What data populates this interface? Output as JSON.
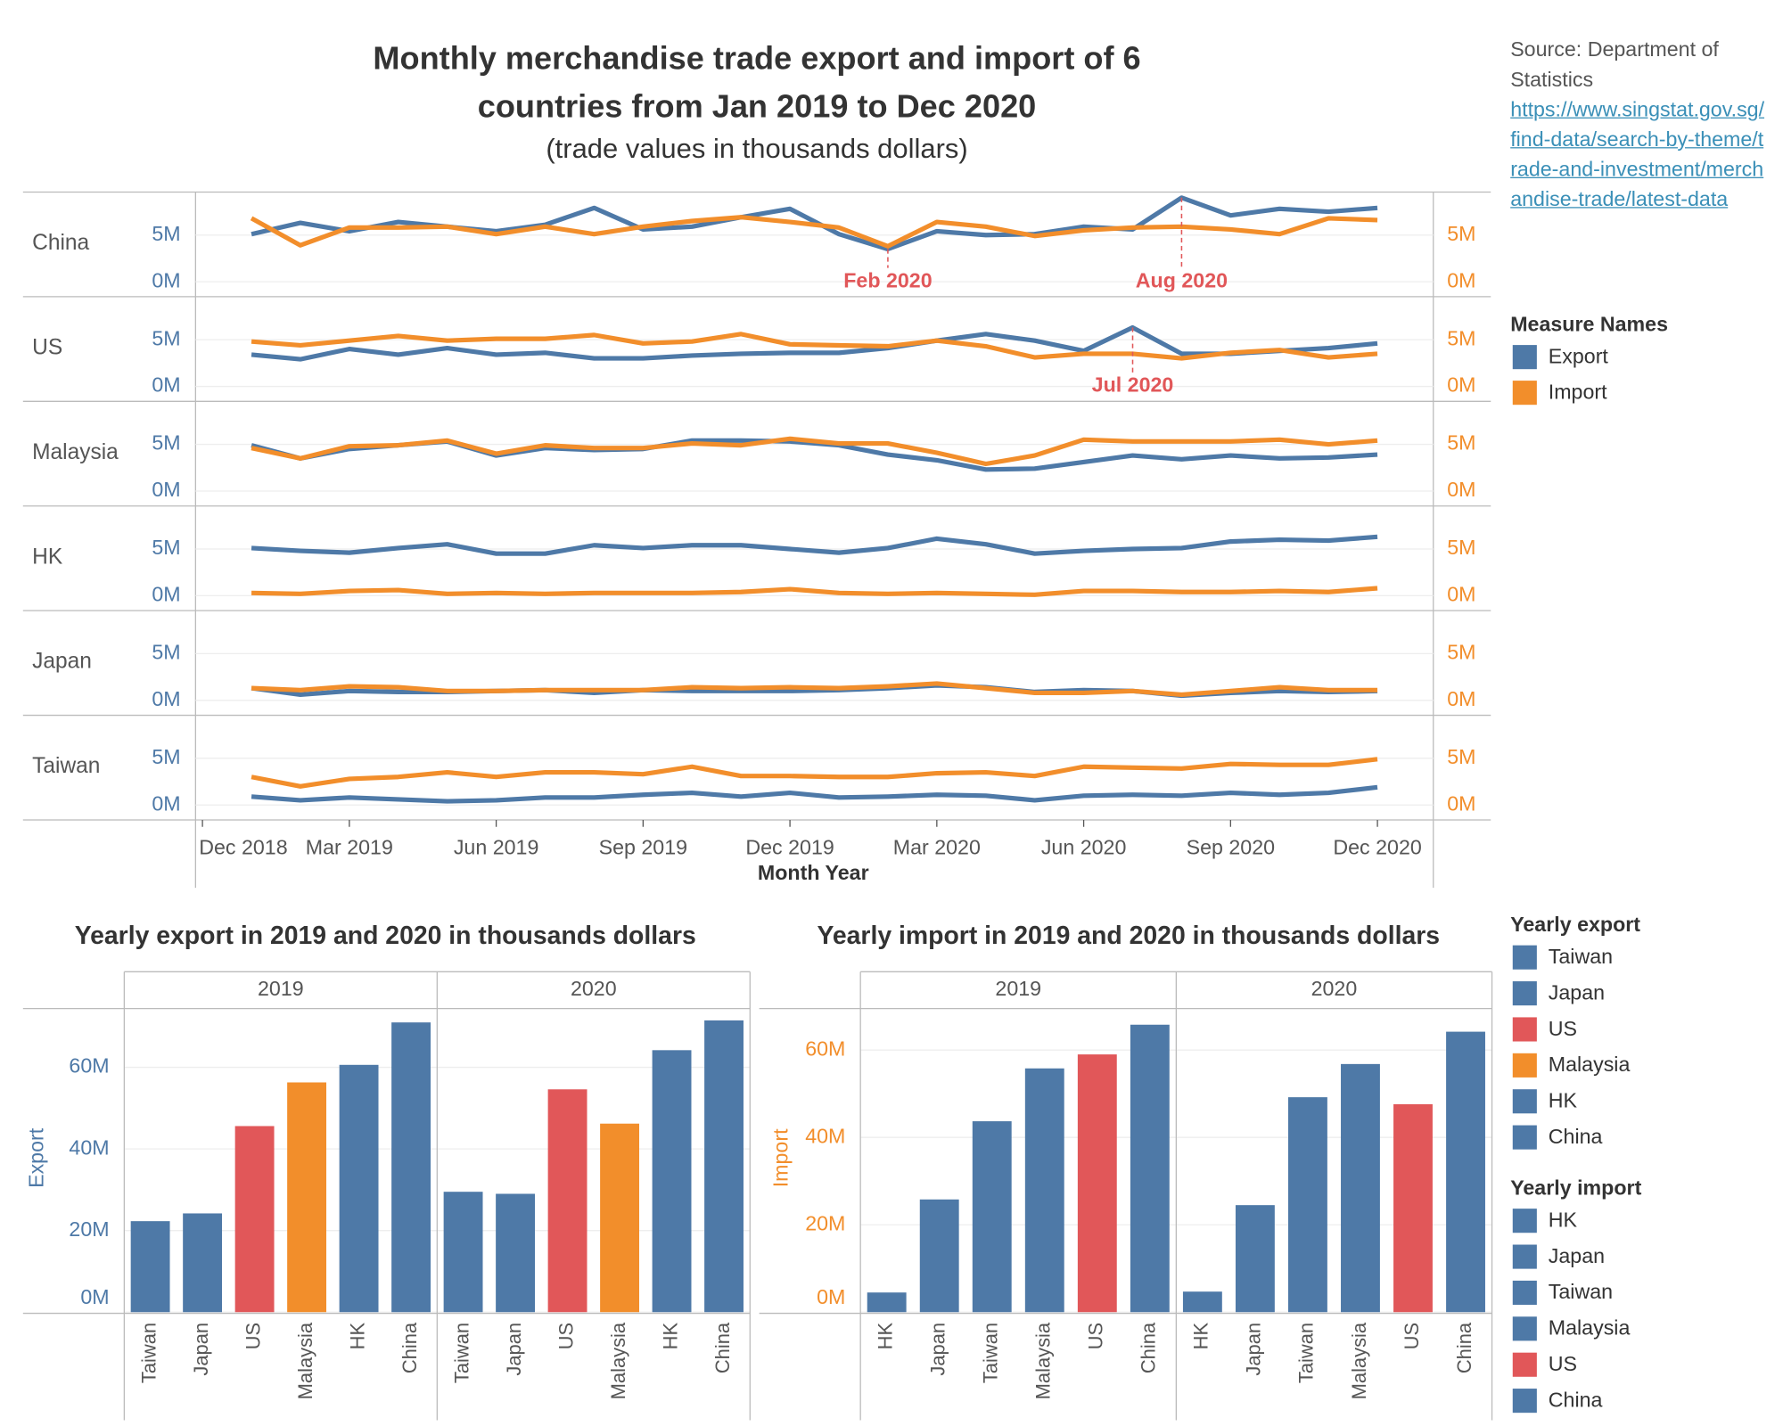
{
  "source": {
    "text": "Source: Department of Statistics",
    "url": "https://www.singstat.gov.sg/find-data/search-by-theme/trade-and-investment/merchandise-trade/latest-data"
  },
  "chart_data": [
    {
      "type": "line",
      "title": "Monthly merchandise trade export and import of 6 countries from Jan 2019 to Dec 2020",
      "subtitle": "(trade values in thousands dollars)",
      "xlabel": "Month Year",
      "x": [
        "2019-01",
        "2019-02",
        "2019-03",
        "2019-04",
        "2019-05",
        "2019-06",
        "2019-07",
        "2019-08",
        "2019-09",
        "2019-10",
        "2019-11",
        "2019-12",
        "2020-01",
        "2020-02",
        "2020-03",
        "2020-04",
        "2020-05",
        "2020-06",
        "2020-07",
        "2020-08",
        "2020-09",
        "2020-10",
        "2020-11",
        "2020-12"
      ],
      "xlim": [
        "2018-12",
        "2021-01"
      ],
      "xticks": [
        {
          "value": "2018-12",
          "label": "Dec 2018"
        },
        {
          "value": "2019-03",
          "label": "Mar 2019"
        },
        {
          "value": "2019-06",
          "label": "Jun 2019"
        },
        {
          "value": "2019-09",
          "label": "Sep 2019"
        },
        {
          "value": "2019-12",
          "label": "Dec 2019"
        },
        {
          "value": "2020-03",
          "label": "Mar 2020"
        },
        {
          "value": "2020-06",
          "label": "Jun 2020"
        },
        {
          "value": "2020-09",
          "label": "Sep 2020"
        },
        {
          "value": "2020-12",
          "label": "Dec 2020"
        }
      ],
      "ylim": [
        -1600000,
        9600000
      ],
      "yticks": [
        {
          "value": 0,
          "label": "0M"
        },
        {
          "value": 5000000,
          "label": "5M"
        }
      ],
      "y2lim": [
        -1600000,
        9600000
      ],
      "y2ticks": [
        {
          "value": 0,
          "label": "0M"
        },
        {
          "value": 5000000,
          "label": "5M"
        }
      ],
      "grid": true,
      "legend_title": "Measure Names",
      "panels": [
        {
          "name": "China",
          "series": [
            {
              "name": "Export",
              "color": "#4e79a7",
              "values": [
                5100000,
                6300000,
                5400000,
                6400000,
                5900000,
                5400000,
                6100000,
                7900000,
                5600000,
                5900000,
                6900000,
                7800000,
                5100000,
                3500000,
                5400000,
                5000000,
                5100000,
                5900000,
                5600000,
                9000000,
                7100000,
                7800000,
                7500000,
                7900000
              ]
            },
            {
              "name": "Import",
              "color": "#f28e2b",
              "axis": "y2",
              "values": [
                6800000,
                3900000,
                5800000,
                5800000,
                5900000,
                5100000,
                5900000,
                5100000,
                5900000,
                6500000,
                6900000,
                6400000,
                5800000,
                3800000,
                6400000,
                5900000,
                4900000,
                5500000,
                5800000,
                5900000,
                5600000,
                5100000,
                6800000,
                6600000
              ]
            }
          ],
          "annotations": [
            {
              "text": "Feb 2020",
              "x": "2020-02"
            },
            {
              "text": "Aug 2020",
              "x": "2020-08"
            }
          ]
        },
        {
          "name": "US",
          "series": [
            {
              "name": "Export",
              "color": "#4e79a7",
              "values": [
                3400000,
                2900000,
                4000000,
                3400000,
                4100000,
                3400000,
                3600000,
                3000000,
                3000000,
                3300000,
                3500000,
                3600000,
                3600000,
                4100000,
                4900000,
                5600000,
                4900000,
                3800000,
                6300000,
                3500000,
                3500000,
                3800000,
                4100000,
                4600000
              ]
            },
            {
              "name": "Import",
              "color": "#f28e2b",
              "axis": "y2",
              "values": [
                4800000,
                4400000,
                4900000,
                5400000,
                4900000,
                5100000,
                5100000,
                5500000,
                4600000,
                4800000,
                5600000,
                4500000,
                4400000,
                4300000,
                4900000,
                4300000,
                3100000,
                3500000,
                3500000,
                3000000,
                3600000,
                3900000,
                3100000,
                3500000
              ]
            }
          ],
          "annotations": [
            {
              "text": "Jul 2020",
              "x": "2020-07"
            }
          ]
        },
        {
          "name": "Malaysia",
          "series": [
            {
              "name": "Export",
              "color": "#4e79a7",
              "values": [
                4900000,
                3500000,
                4500000,
                4900000,
                5300000,
                3800000,
                4600000,
                4400000,
                4500000,
                5400000,
                5400000,
                5300000,
                4900000,
                3900000,
                3300000,
                2300000,
                2400000,
                3100000,
                3800000,
                3400000,
                3800000,
                3500000,
                3600000,
                3900000
              ]
            },
            {
              "name": "Import",
              "color": "#f28e2b",
              "axis": "y2",
              "values": [
                4600000,
                3500000,
                4800000,
                4900000,
                5400000,
                4000000,
                4900000,
                4600000,
                4600000,
                5100000,
                4900000,
                5600000,
                5100000,
                5100000,
                4100000,
                2900000,
                3800000,
                5500000,
                5300000,
                5300000,
                5300000,
                5500000,
                5000000,
                5400000
              ]
            }
          ]
        },
        {
          "name": "HK",
          "series": [
            {
              "name": "Export",
              "color": "#4e79a7",
              "values": [
                5100000,
                4800000,
                4600000,
                5100000,
                5500000,
                4500000,
                4500000,
                5400000,
                5100000,
                5400000,
                5400000,
                5000000,
                4600000,
                5100000,
                6100000,
                5500000,
                4500000,
                4800000,
                5000000,
                5100000,
                5800000,
                6000000,
                5900000,
                6300000
              ]
            },
            {
              "name": "Import",
              "color": "#f28e2b",
              "axis": "y2",
              "values": [
                300000,
                200000,
                500000,
                600000,
                200000,
                300000,
                200000,
                300000,
                300000,
                300000,
                400000,
                700000,
                300000,
                200000,
                300000,
                200000,
                100000,
                500000,
                500000,
                400000,
                400000,
                500000,
                400000,
                800000
              ]
            }
          ]
        },
        {
          "name": "Japan",
          "series": [
            {
              "name": "Export",
              "color": "#4e79a7",
              "values": [
                1300000,
                600000,
                1000000,
                900000,
                900000,
                1000000,
                1100000,
                800000,
                1100000,
                1000000,
                1000000,
                1000000,
                1100000,
                1300000,
                1600000,
                1400000,
                900000,
                1100000,
                1000000,
                500000,
                800000,
                1000000,
                900000,
                1000000
              ]
            },
            {
              "name": "Import",
              "color": "#f28e2b",
              "axis": "y2",
              "values": [
                1300000,
                1100000,
                1500000,
                1400000,
                1000000,
                1000000,
                1100000,
                1100000,
                1100000,
                1400000,
                1300000,
                1400000,
                1300000,
                1500000,
                1800000,
                1300000,
                800000,
                800000,
                1000000,
                600000,
                1000000,
                1400000,
                1100000,
                1100000
              ]
            }
          ]
        },
        {
          "name": "Taiwan",
          "series": [
            {
              "name": "Export",
              "color": "#4e79a7",
              "values": [
                900000,
                500000,
                800000,
                600000,
                400000,
                500000,
                800000,
                800000,
                1100000,
                1300000,
                900000,
                1300000,
                800000,
                900000,
                1100000,
                1000000,
                500000,
                1000000,
                1100000,
                1000000,
                1300000,
                1100000,
                1300000,
                1900000
              ]
            },
            {
              "name": "Import",
              "color": "#f28e2b",
              "axis": "y2",
              "values": [
                3000000,
                2000000,
                2800000,
                3000000,
                3500000,
                3000000,
                3500000,
                3500000,
                3300000,
                4100000,
                3100000,
                3100000,
                3000000,
                3000000,
                3400000,
                3500000,
                3100000,
                4100000,
                4000000,
                3900000,
                4400000,
                4300000,
                4300000,
                4900000
              ]
            }
          ]
        }
      ]
    },
    {
      "type": "bar",
      "title": "Yearly export in 2019 and 2020 in thousands dollars",
      "ylabel": "Export",
      "ylim": [
        0,
        74400000
      ],
      "yticks": [
        {
          "value": 0,
          "label": "0M"
        },
        {
          "value": 20000000,
          "label": "20M"
        },
        {
          "value": 40000000,
          "label": "40M"
        },
        {
          "value": 60000000,
          "label": "60M"
        }
      ],
      "grid": true,
      "legend_title": "Yearly export",
      "facets": [
        {
          "name": "2019",
          "categories": [
            "Taiwan",
            "Japan",
            "US",
            "Malaysia",
            "HK",
            "China"
          ],
          "values": [
            22300000,
            24200000,
            45600000,
            56300000,
            60600000,
            71000000
          ],
          "colors": [
            "#4e79a7",
            "#4e79a7",
            "#e15759",
            "#f28e2b",
            "#4e79a7",
            "#4e79a7"
          ]
        },
        {
          "name": "2020",
          "categories": [
            "Taiwan",
            "Japan",
            "US",
            "Malaysia",
            "HK",
            "China"
          ],
          "values": [
            29500000,
            29000000,
            54600000,
            46200000,
            64200000,
            71500000
          ],
          "colors": [
            "#4e79a7",
            "#4e79a7",
            "#e15759",
            "#f28e2b",
            "#4e79a7",
            "#4e79a7"
          ]
        }
      ]
    },
    {
      "type": "bar",
      "title": "Yearly import in 2019 and 2020 in thousands dollars",
      "ylabel": "Import",
      "ylim": [
        0,
        69500000
      ],
      "yticks": [
        {
          "value": 0,
          "label": "0M"
        },
        {
          "value": 20000000,
          "label": "20M"
        },
        {
          "value": 40000000,
          "label": "40M"
        },
        {
          "value": 60000000,
          "label": "60M"
        }
      ],
      "grid": true,
      "legend_title": "Yearly import",
      "facets": [
        {
          "name": "2019",
          "categories": [
            "HK",
            "Japan",
            "Taiwan",
            "Malaysia",
            "US",
            "China"
          ],
          "values": [
            4500000,
            25800000,
            43700000,
            55800000,
            59000000,
            65800000
          ],
          "colors": [
            "#4e79a7",
            "#4e79a7",
            "#4e79a7",
            "#4e79a7",
            "#e15759",
            "#4e79a7"
          ]
        },
        {
          "name": "2020",
          "categories": [
            "HK",
            "Japan",
            "Taiwan",
            "Malaysia",
            "US",
            "China"
          ],
          "values": [
            4700000,
            24500000,
            49200000,
            56800000,
            47600000,
            64200000
          ],
          "colors": [
            "#4e79a7",
            "#4e79a7",
            "#4e79a7",
            "#4e79a7",
            "#e15759",
            "#4e79a7"
          ]
        }
      ]
    }
  ]
}
